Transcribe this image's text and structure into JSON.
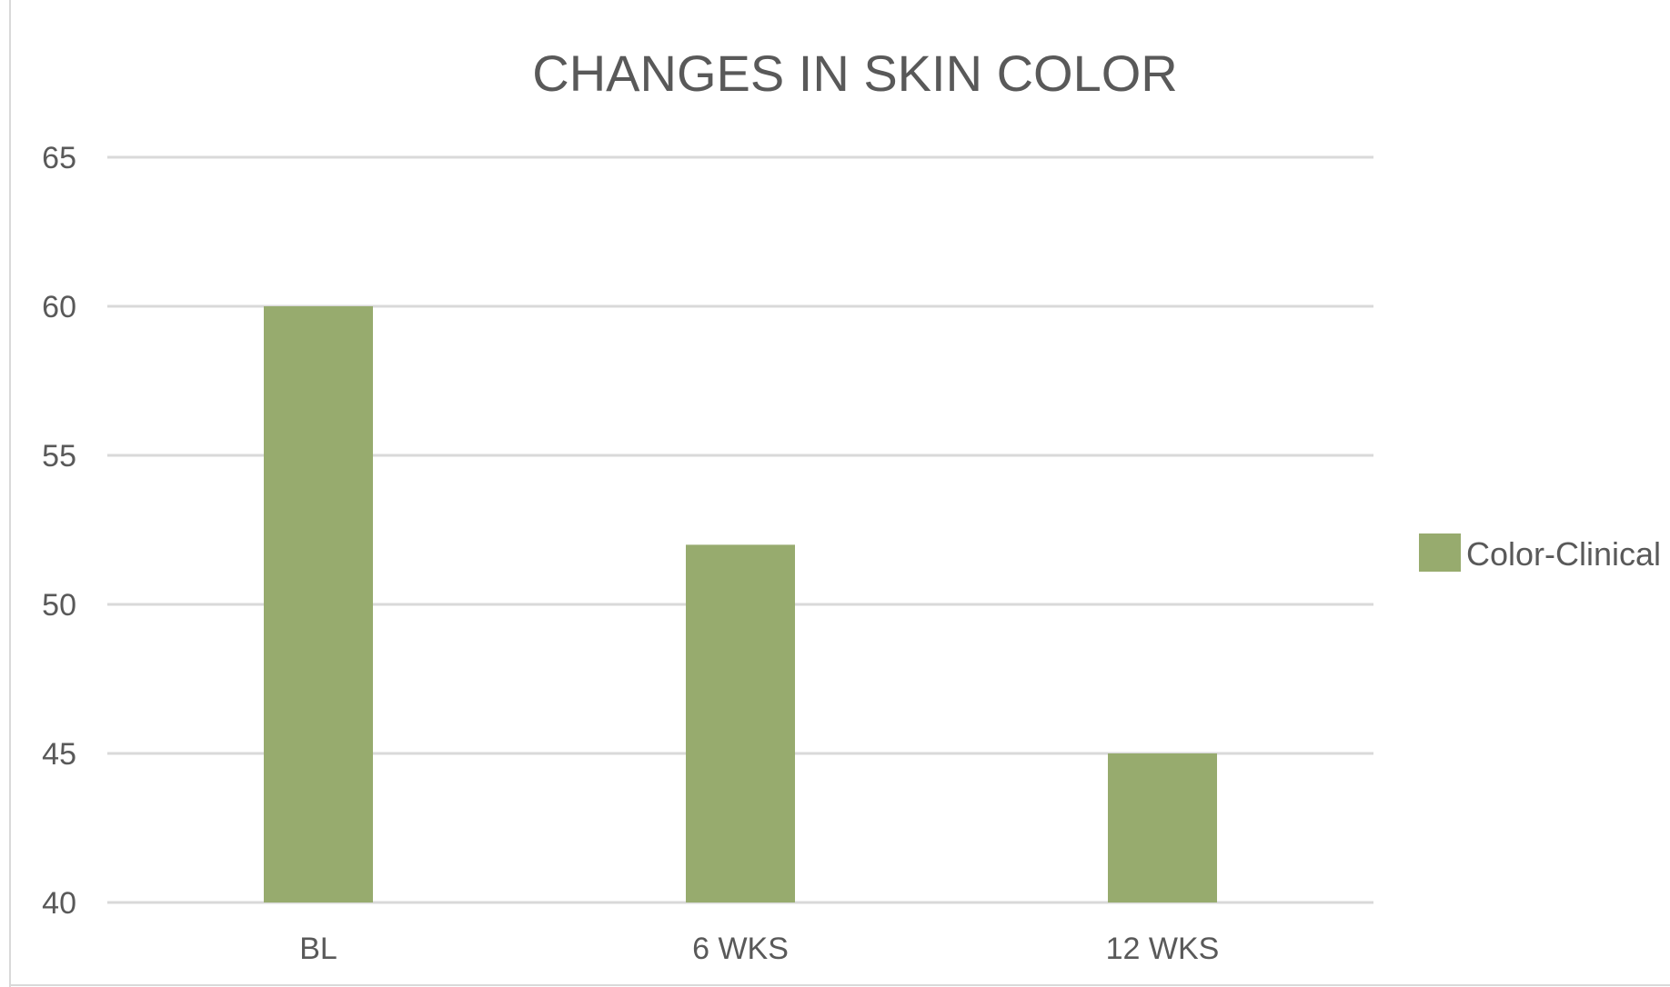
{
  "chart_data": {
    "type": "bar",
    "title": "CHANGES IN SKIN COLOR",
    "categories": [
      "BL",
      "6 WKS",
      "12 WKS"
    ],
    "series": [
      {
        "name": "Color-Clinical",
        "values": [
          60,
          52,
          45
        ],
        "color": "#97ab6e"
      }
    ],
    "ylim": [
      40,
      65
    ],
    "yticks": [
      "40",
      "45",
      "50",
      "55",
      "60",
      "65"
    ],
    "grid": true,
    "legend_position": "right"
  }
}
